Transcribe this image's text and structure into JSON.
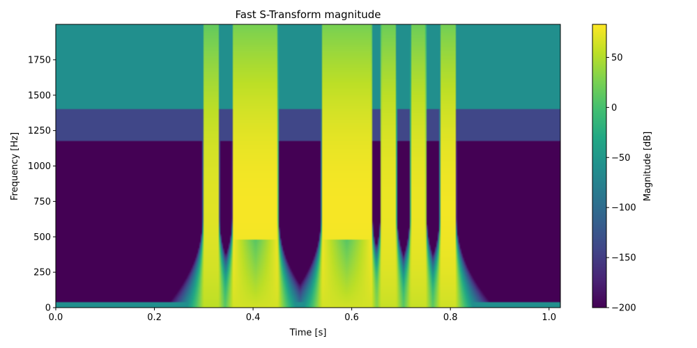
{
  "chart_data": {
    "type": "heatmap",
    "title": "Fast S-Transform magnitude",
    "xlabel": "Time [s]",
    "ylabel": "Frequency [Hz]",
    "colorbar_label": "Magnitude [dB]",
    "xlim": [
      0.0,
      1.023
    ],
    "ylim": [
      0,
      2000
    ],
    "clim": [
      -200,
      83
    ],
    "colormap": "viridis",
    "x_ticks": [
      0.0,
      0.2,
      0.4,
      0.6,
      0.8,
      1.0
    ],
    "x_tick_labels": [
      "0.0",
      "0.2",
      "0.4",
      "0.6",
      "0.8",
      "1.0"
    ],
    "y_ticks": [
      0,
      250,
      500,
      750,
      1000,
      1250,
      1500,
      1750
    ],
    "y_tick_labels": [
      "0",
      "250",
      "500",
      "750",
      "1000",
      "1250",
      "1500",
      "1750"
    ],
    "colorbar_ticks": [
      50,
      0,
      -50,
      -100,
      -150,
      -200
    ],
    "colorbar_tick_labels": [
      "50",
      "0",
      "−50",
      "−100",
      "−150",
      "−200"
    ],
    "background_levels_db": [
      {
        "freq_range_hz": [
          0,
          1180
        ],
        "level_db": -200
      },
      {
        "freq_range_hz": [
          1180,
          1400
        ],
        "level_db": -140
      },
      {
        "freq_range_hz": [
          1400,
          2000
        ],
        "level_db": -60
      }
    ],
    "bursts": [
      {
        "t_start": 0.3,
        "t_end": 0.33,
        "peak_freq_hz": 700,
        "peak_db": 70
      },
      {
        "t_start": 0.36,
        "t_end": 0.45,
        "peak_freq_hz": 700,
        "peak_db": 80
      },
      {
        "t_start": 0.54,
        "t_end": 0.64,
        "peak_freq_hz": 700,
        "peak_db": 80
      },
      {
        "t_start": 0.66,
        "t_end": 0.69,
        "peak_freq_hz": 700,
        "peak_db": 75
      },
      {
        "t_start": 0.72,
        "t_end": 0.75,
        "peak_freq_hz": 700,
        "peak_db": 75
      },
      {
        "t_start": 0.78,
        "t_end": 0.81,
        "peak_freq_hz": 700,
        "peak_db": 78
      }
    ]
  }
}
